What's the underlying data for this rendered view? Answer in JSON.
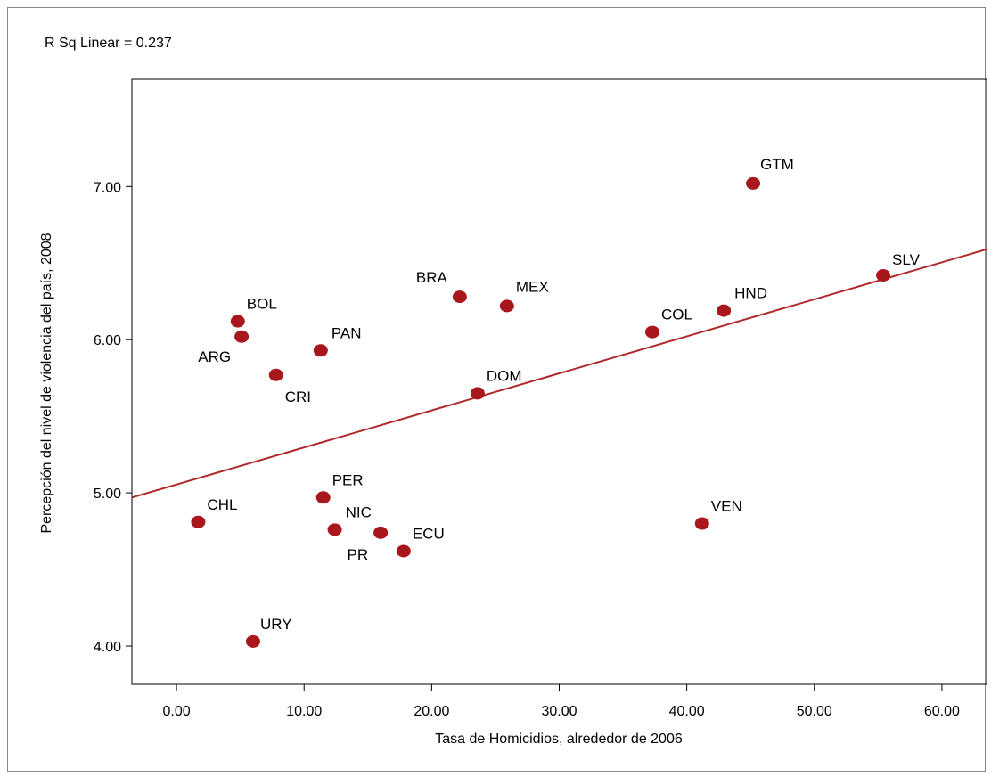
{
  "chart_data": {
    "type": "scatter",
    "annotation": "R Sq Linear = 0.237",
    "xlabel": "Tasa de Homicidios, alrededor de 2006",
    "ylabel": "Percepción del nivel de violencia del país, 2008",
    "xlim": [
      -3.5,
      63.5
    ],
    "ylim": [
      3.75,
      7.7
    ],
    "x_ticks": [
      "0.00",
      "10.00",
      "20.00",
      "30.00",
      "40.00",
      "50.00",
      "60.00"
    ],
    "x_tick_values": [
      0,
      10,
      20,
      30,
      40,
      50,
      60
    ],
    "y_ticks": [
      "4.00",
      "5.00",
      "6.00",
      "7.00"
    ],
    "y_tick_values": [
      4,
      5,
      6,
      7
    ],
    "point_color": "#a8171c",
    "fit_line_color": "#b0282a",
    "fit_line": [
      [
        -3.5,
        4.97
      ],
      [
        63.5,
        6.59
      ]
    ],
    "points": [
      {
        "label": "GTM",
        "x": 45.2,
        "y": 7.02
      },
      {
        "label": "SLV",
        "x": 55.4,
        "y": 6.42
      },
      {
        "label": "HND",
        "x": 42.9,
        "y": 6.19
      },
      {
        "label": "COL",
        "x": 37.3,
        "y": 6.05
      },
      {
        "label": "BRA",
        "x": 22.2,
        "y": 6.28
      },
      {
        "label": "MEX",
        "x": 25.9,
        "y": 6.22
      },
      {
        "label": "BOL",
        "x": 4.8,
        "y": 6.12
      },
      {
        "label": "ARG",
        "x": 5.1,
        "y": 6.02
      },
      {
        "label": "PAN",
        "x": 11.3,
        "y": 5.93
      },
      {
        "label": "CRI",
        "x": 7.8,
        "y": 5.77
      },
      {
        "label": "DOM",
        "x": 23.6,
        "y": 5.65
      },
      {
        "label": "PER",
        "x": 11.5,
        "y": 4.97
      },
      {
        "label": "CHL",
        "x": 1.7,
        "y": 4.81
      },
      {
        "label": "NIC",
        "x": 12.4,
        "y": 4.76
      },
      {
        "label": "PR",
        "x": 16.0,
        "y": 4.74
      },
      {
        "label": "ECU",
        "x": 17.8,
        "y": 4.62
      },
      {
        "label": "VEN",
        "x": 41.2,
        "y": 4.8
      },
      {
        "label": "URY",
        "x": 6.0,
        "y": 4.03
      }
    ]
  }
}
